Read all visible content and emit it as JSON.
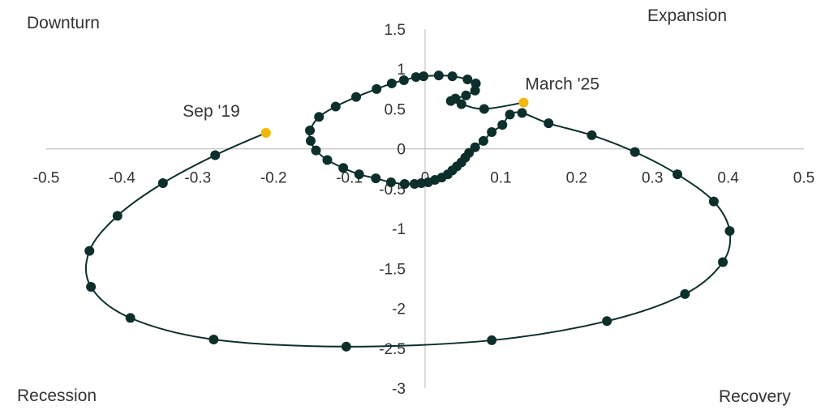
{
  "quadrants": {
    "top_left": "Downturn",
    "top_right": "Expansion",
    "bottom_left": "Recession",
    "bottom_right": "Recovery"
  },
  "colors": {
    "path": "#0c2f2b",
    "highlight": "#f2b705",
    "axis": "#c8c8c8",
    "text": "#333333"
  },
  "chart_data": {
    "type": "scatter",
    "title": "",
    "xlabel": "",
    "ylabel": "",
    "xlim": [
      -0.5,
      0.5
    ],
    "ylim": [
      -3,
      1.5
    ],
    "xticks": [
      -0.5,
      -0.4,
      -0.3,
      -0.2,
      -0.1,
      0,
      0.1,
      0.2,
      0.3,
      0.4,
      0.5
    ],
    "yticks": [
      1.5,
      1,
      0.5,
      0,
      -0.5,
      -1,
      -1.5,
      -2,
      -2.5,
      -3
    ],
    "x_tick_labels": [
      "-0.5",
      "-0.4",
      "-0.3",
      "-0.2",
      "-0.1",
      "0",
      "0.1",
      "0.2",
      "0.3",
      "0.4",
      "0.5"
    ],
    "y_tick_labels": [
      "1.5",
      "1",
      "0.5",
      "0",
      "-0.5",
      "-1",
      "-1.5",
      "-2",
      "-2.5",
      "-3"
    ],
    "grid": false,
    "connected": true,
    "points": [
      [
        -0.21,
        0.2
      ],
      [
        -0.277,
        -0.08
      ],
      [
        -0.346,
        -0.43
      ],
      [
        -0.406,
        -0.84
      ],
      [
        -0.443,
        -1.28
      ],
      [
        -0.441,
        -1.73
      ],
      [
        -0.389,
        -2.12
      ],
      [
        -0.279,
        -2.39
      ],
      [
        -0.104,
        -2.48
      ],
      [
        0.088,
        -2.4
      ],
      [
        0.24,
        -2.16
      ],
      [
        0.343,
        -1.82
      ],
      [
        0.393,
        -1.42
      ],
      [
        0.402,
        -1.03
      ],
      [
        0.381,
        -0.66
      ],
      [
        0.333,
        -0.32
      ],
      [
        0.277,
        -0.04
      ],
      [
        0.22,
        0.17
      ],
      [
        0.163,
        0.32
      ],
      [
        0.128,
        0.45
      ],
      [
        0.112,
        0.43
      ],
      [
        0.102,
        0.3
      ],
      [
        0.088,
        0.21
      ],
      [
        0.077,
        0.1
      ],
      [
        0.066,
        0.02
      ],
      [
        0.058,
        -0.05
      ],
      [
        0.053,
        -0.11
      ],
      [
        0.048,
        -0.17
      ],
      [
        0.042,
        -0.22
      ],
      [
        0.036,
        -0.27
      ],
      [
        0.03,
        -0.32
      ],
      [
        0.022,
        -0.36
      ],
      [
        0.013,
        -0.39
      ],
      [
        0.004,
        -0.42
      ],
      [
        -0.005,
        -0.43
      ],
      [
        -0.014,
        -0.44
      ],
      [
        -0.027,
        -0.44
      ],
      [
        -0.045,
        -0.42
      ],
      [
        -0.065,
        -0.37
      ],
      [
        -0.087,
        -0.32
      ],
      [
        -0.108,
        -0.24
      ],
      [
        -0.129,
        -0.14
      ],
      [
        -0.144,
        -0.02
      ],
      [
        -0.151,
        0.1
      ],
      [
        -0.152,
        0.23
      ],
      [
        -0.14,
        0.4
      ],
      [
        -0.118,
        0.53
      ],
      [
        -0.091,
        0.65
      ],
      [
        -0.064,
        0.75
      ],
      [
        -0.044,
        0.82
      ],
      [
        -0.028,
        0.86
      ],
      [
        -0.012,
        0.9
      ],
      [
        -0.002,
        0.91
      ],
      [
        0.018,
        0.92
      ],
      [
        0.036,
        0.91
      ],
      [
        0.056,
        0.87
      ],
      [
        0.067,
        0.82
      ],
      [
        0.066,
        0.73
      ],
      [
        0.054,
        0.67
      ],
      [
        0.04,
        0.63
      ],
      [
        0.034,
        0.6
      ],
      [
        0.048,
        0.56
      ],
      [
        0.078,
        0.5
      ],
      [
        0.13,
        0.58
      ]
    ],
    "highlights": [
      {
        "label": "Sep '19",
        "x": -0.21,
        "y": 0.2
      },
      {
        "label": "March '25",
        "x": 0.13,
        "y": 0.58
      }
    ]
  }
}
